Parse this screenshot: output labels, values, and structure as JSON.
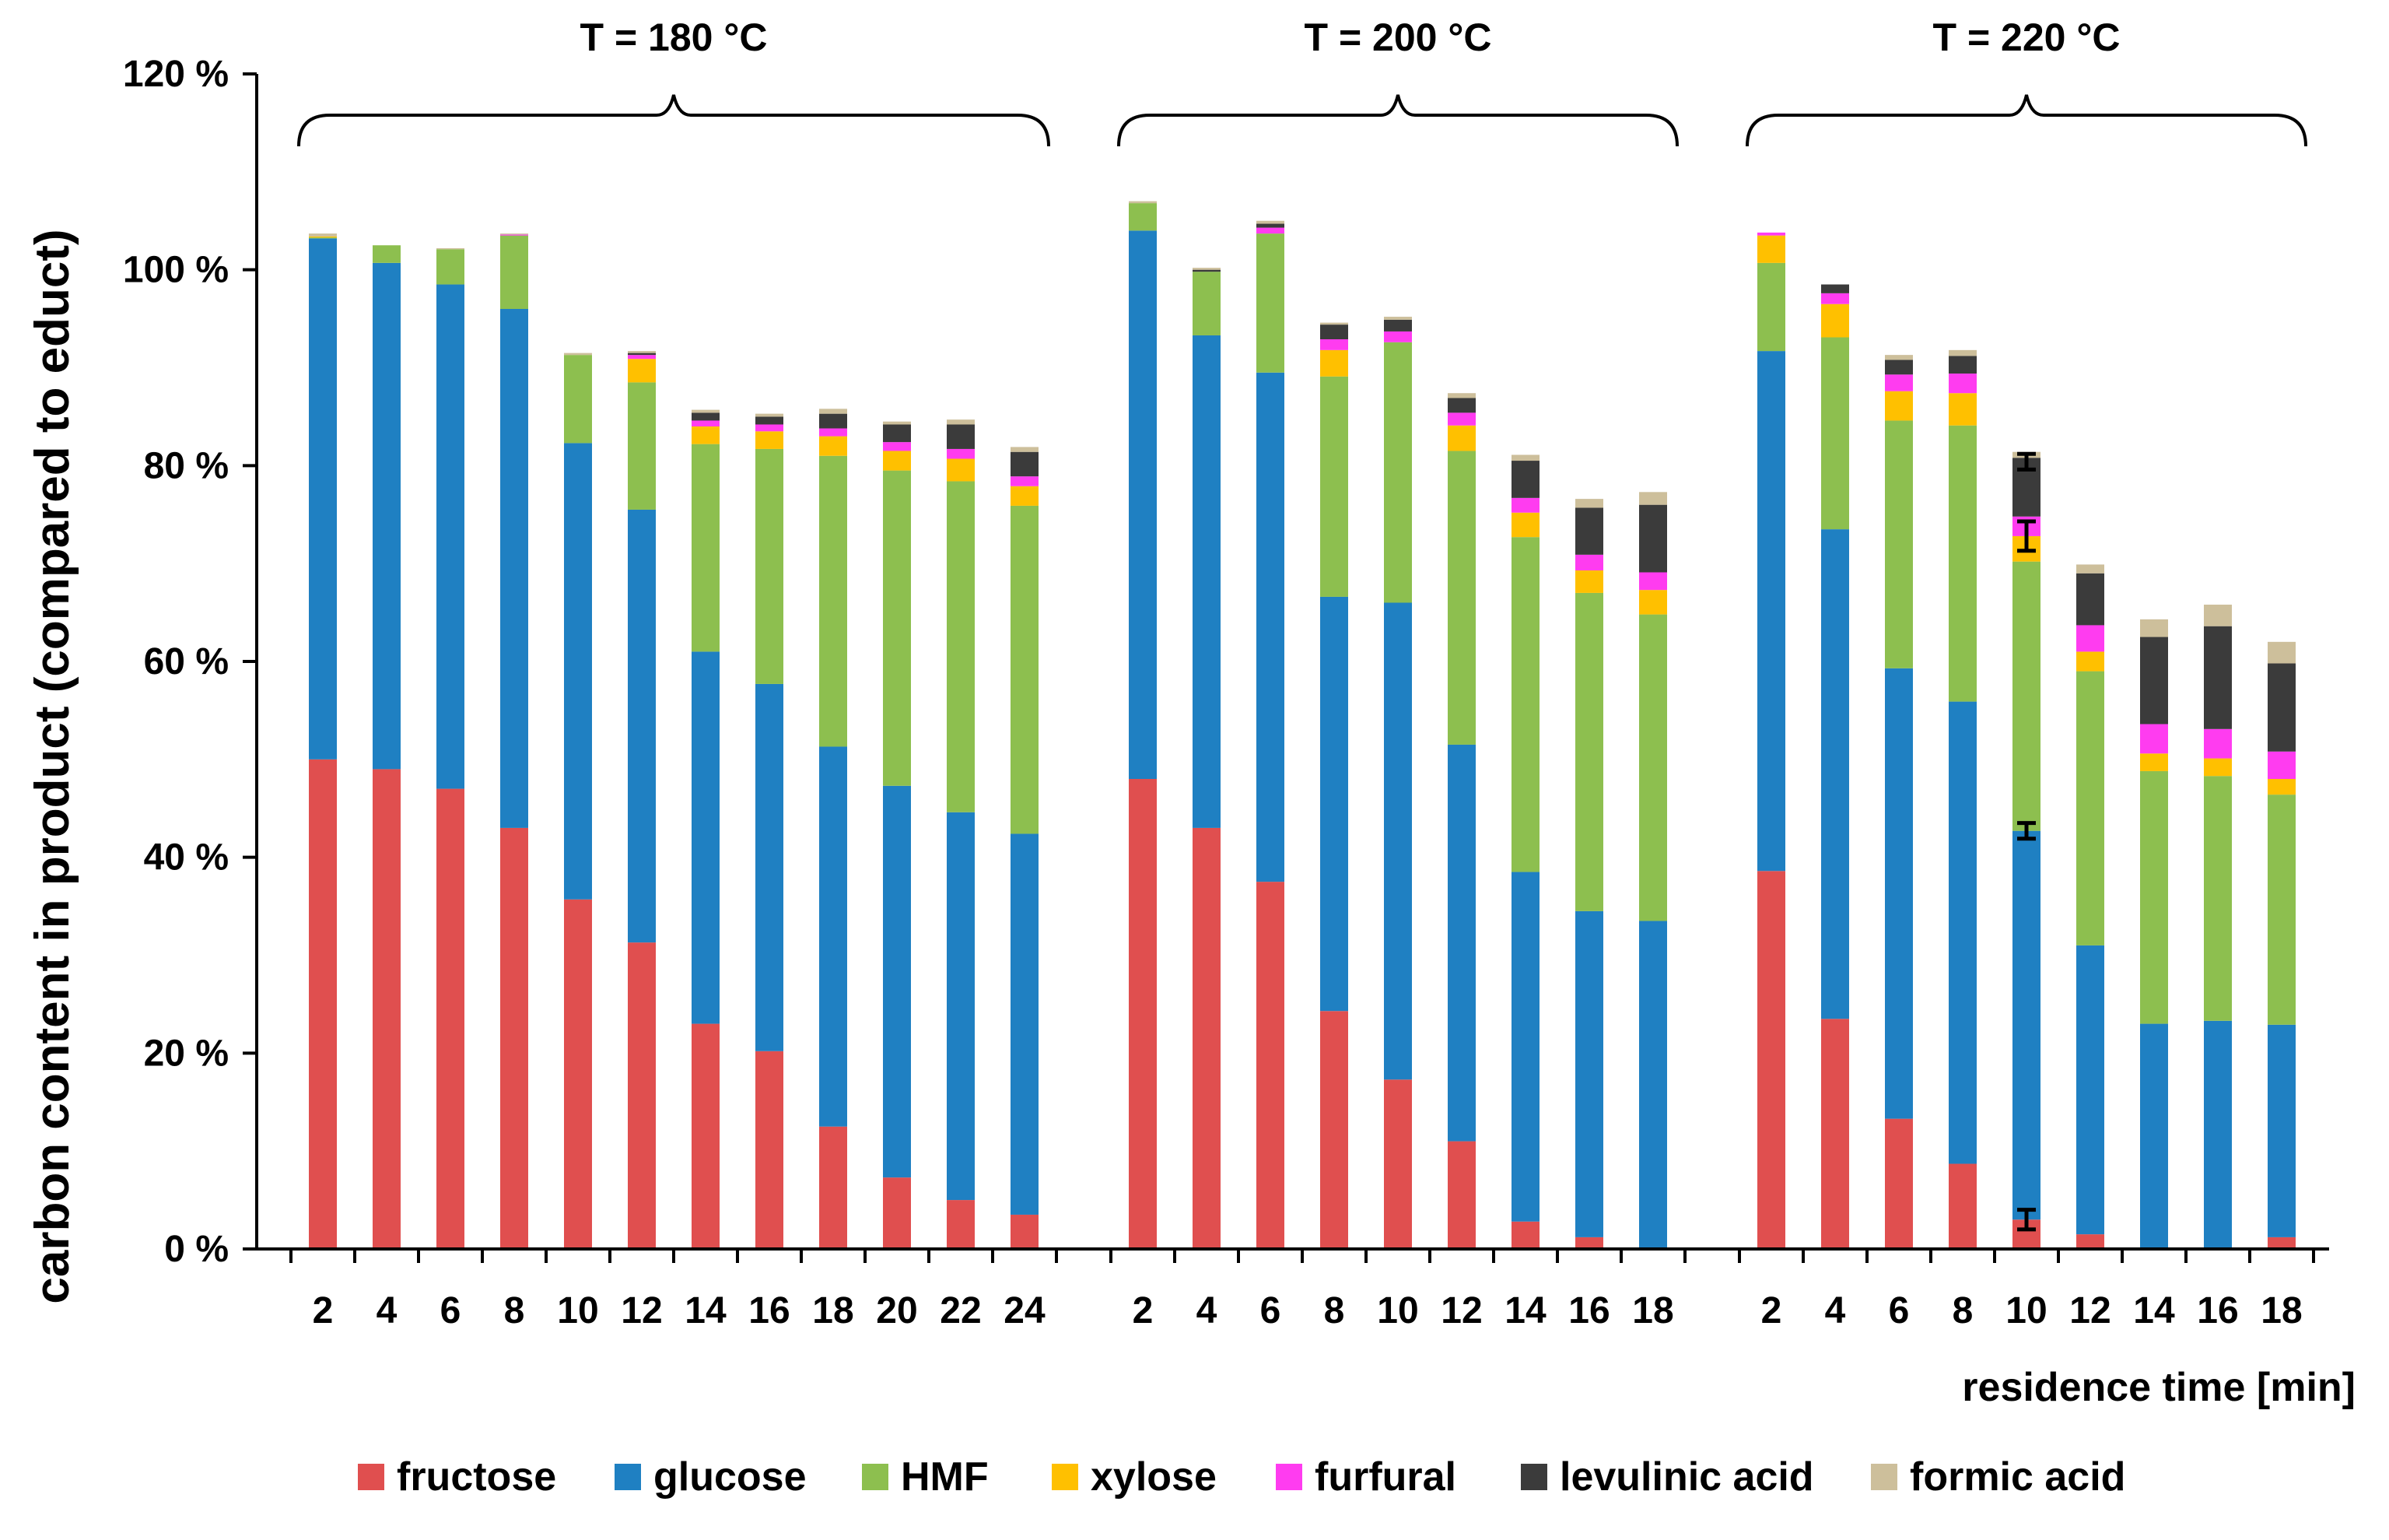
{
  "chart_data": {
    "type": "bar",
    "stacked": true,
    "ylabel": "carbon content in product  (compared to educt)",
    "xlabel": "residence time  [min]",
    "ylim": [
      0,
      120
    ],
    "yticks": [
      0,
      20,
      40,
      60,
      80,
      100,
      120
    ],
    "ytick_labels": [
      "0 %",
      "20 %",
      "40 %",
      "60 %",
      "80 %",
      "100 %",
      "120 %"
    ],
    "legend_position": "bottom",
    "colors": {
      "fructose": "#e04f4f",
      "glucose": "#1f80c2",
      "HMF": "#8dbf4f",
      "xylose": "#ffc000",
      "furfural": "#ff3cf0",
      "levulinic acid": "#3b3b3b",
      "formic acid": "#cdbf9b"
    },
    "series_names": [
      "fructose",
      "glucose",
      "HMF",
      "xylose",
      "furfural",
      "levulinic acid",
      "formic acid"
    ],
    "groups": [
      {
        "label": "T = 180 °C",
        "categories": [
          "2",
          "4",
          "6",
          "8",
          "10",
          "12",
          "14",
          "16",
          "18",
          "20",
          "22",
          "24"
        ],
        "series": [
          {
            "name": "fructose",
            "values": [
              50,
              49,
              47,
              43,
              35.7,
              31.3,
              23,
              20.2,
              12.5,
              7.3,
              5,
              3.5
            ]
          },
          {
            "name": "glucose",
            "values": [
              53.2,
              51.7,
              51.5,
              53,
              46.6,
              44.2,
              38,
              37.5,
              38.8,
              40,
              39.6,
              38.9
            ]
          },
          {
            "name": "HMF",
            "values": [
              0.1,
              1.8,
              3.6,
              7.5,
              9,
              13,
              21.2,
              24,
              29.7,
              32.2,
              33.8,
              33.5
            ]
          },
          {
            "name": "xylose",
            "values": [
              0.1,
              0,
              0,
              0,
              0,
              2.4,
              1.8,
              1.8,
              2,
              2,
              2.3,
              2
            ]
          },
          {
            "name": "furfural",
            "values": [
              0,
              0,
              0,
              0.1,
              0,
              0.4,
              0.6,
              0.7,
              0.8,
              0.9,
              1,
              1
            ]
          },
          {
            "name": "levulinic acid",
            "values": [
              0,
              0,
              0,
              0,
              0,
              0.2,
              0.8,
              0.8,
              1.5,
              1.8,
              2.5,
              2.5
            ]
          },
          {
            "name": "formic acid",
            "values": [
              0.3,
              0,
              0.1,
              0.1,
              0.2,
              0.2,
              0.3,
              0.3,
              0.5,
              0.3,
              0.5,
              0.5
            ]
          }
        ]
      },
      {
        "label": "T = 200 °C",
        "categories": [
          "2",
          "4",
          "6",
          "8",
          "10",
          "12",
          "14",
          "16",
          "18"
        ],
        "series": [
          {
            "name": "fructose",
            "values": [
              48,
              43,
              37.5,
              24.3,
              17.3,
              11,
              2.8,
              1.2,
              0
            ]
          },
          {
            "name": "glucose",
            "values": [
              56,
              50.3,
              52,
              42.3,
              48.7,
              40.5,
              35.7,
              33.3,
              33.5
            ]
          },
          {
            "name": "HMF",
            "values": [
              2.8,
              6.5,
              14.2,
              22.5,
              26.6,
              30,
              34.2,
              32.5,
              31.3
            ]
          },
          {
            "name": "xylose",
            "values": [
              0,
              0,
              0,
              2.7,
              0,
              2.6,
              2.5,
              2.3,
              2.5
            ]
          },
          {
            "name": "furfural",
            "values": [
              0,
              0,
              0.6,
              1.1,
              1.1,
              1.3,
              1.5,
              1.6,
              1.8
            ]
          },
          {
            "name": "levulinic acid",
            "values": [
              0,
              0.2,
              0.4,
              1.5,
              1.2,
              1.5,
              3.8,
              4.8,
              6.9
            ]
          },
          {
            "name": "formic acid",
            "values": [
              0.2,
              0.2,
              0.3,
              0.2,
              0.3,
              0.5,
              0.6,
              0.9,
              1.3
            ]
          }
        ]
      },
      {
        "label": "T = 220 °C",
        "categories": [
          "2",
          "4",
          "6",
          "8",
          "10",
          "12",
          "14",
          "16",
          "18"
        ],
        "series": [
          {
            "name": "fructose",
            "values": [
              38.6,
              23.5,
              13.3,
              8.7,
              3,
              1.5,
              0,
              0,
              1.2
            ]
          },
          {
            "name": "glucose",
            "values": [
              53.1,
              50,
              46,
              47.2,
              39.7,
              29.5,
              23,
              23.3,
              21.7
            ]
          },
          {
            "name": "HMF",
            "values": [
              9,
              19.6,
              25.3,
              28.2,
              27.5,
              28,
              25.8,
              25,
              23.5
            ]
          },
          {
            "name": "xylose",
            "values": [
              2.8,
              3.4,
              3,
              3.3,
              2.6,
              2,
              1.8,
              1.8,
              1.6
            ]
          },
          {
            "name": "furfural",
            "values": [
              0.3,
              1.1,
              1.7,
              2,
              2,
              2.7,
              3,
              3,
              2.8
            ]
          },
          {
            "name": "levulinic acid",
            "values": [
              0,
              0.9,
              1.5,
              1.8,
              6,
              5.3,
              8.9,
              10.5,
              9
            ]
          },
          {
            "name": "formic acid",
            "values": [
              0,
              0,
              0.5,
              0.6,
              0.6,
              0.9,
              1.8,
              2.2,
              2.2
            ]
          }
        ]
      }
    ],
    "error_bars": [
      {
        "group": 2,
        "category": "10",
        "value": 3,
        "plus_minus": 1
      },
      {
        "group": 2,
        "category": "10",
        "value": 42.7,
        "plus_minus": 0.8
      },
      {
        "group": 2,
        "category": "10",
        "value": 72.8,
        "plus_minus": 1.5
      },
      {
        "group": 2,
        "category": "10",
        "value": 80.4,
        "plus_minus": 0.8
      }
    ]
  }
}
